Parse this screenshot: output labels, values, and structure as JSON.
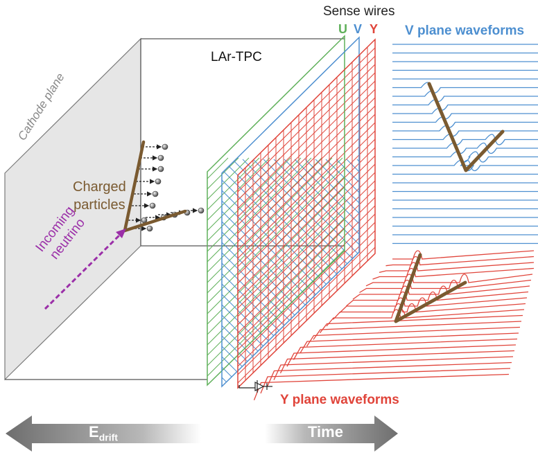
{
  "labels": {
    "sense_wires": "Sense wires",
    "u": "U",
    "v": "V",
    "y": "Y",
    "v_plane_waveforms": "V plane waveforms",
    "lar_tpc": "LAr-TPC",
    "cathode_plane": "Cathode plane",
    "charged_line1": "Charged",
    "charged_line2": "particles",
    "incoming_line1": "Incoming",
    "incoming_line2": "neutrino",
    "y_plane_waveforms": "Y plane waveforms",
    "e_drift_main": "E",
    "e_drift_sub": "drift",
    "time": "Time"
  },
  "colors": {
    "u_plane": "#5fb05a",
    "v_plane": "#4d8fd0",
    "y_plane": "#e0443a",
    "track": "#7a5a30",
    "neutrino": "#9b2fa8",
    "cathode_fill": "#e6e6e6",
    "arrow_gray": "#8c8c8c"
  },
  "icons": {
    "electron": "gray-sphere-icon",
    "amplifier": "amplifier-icon"
  }
}
